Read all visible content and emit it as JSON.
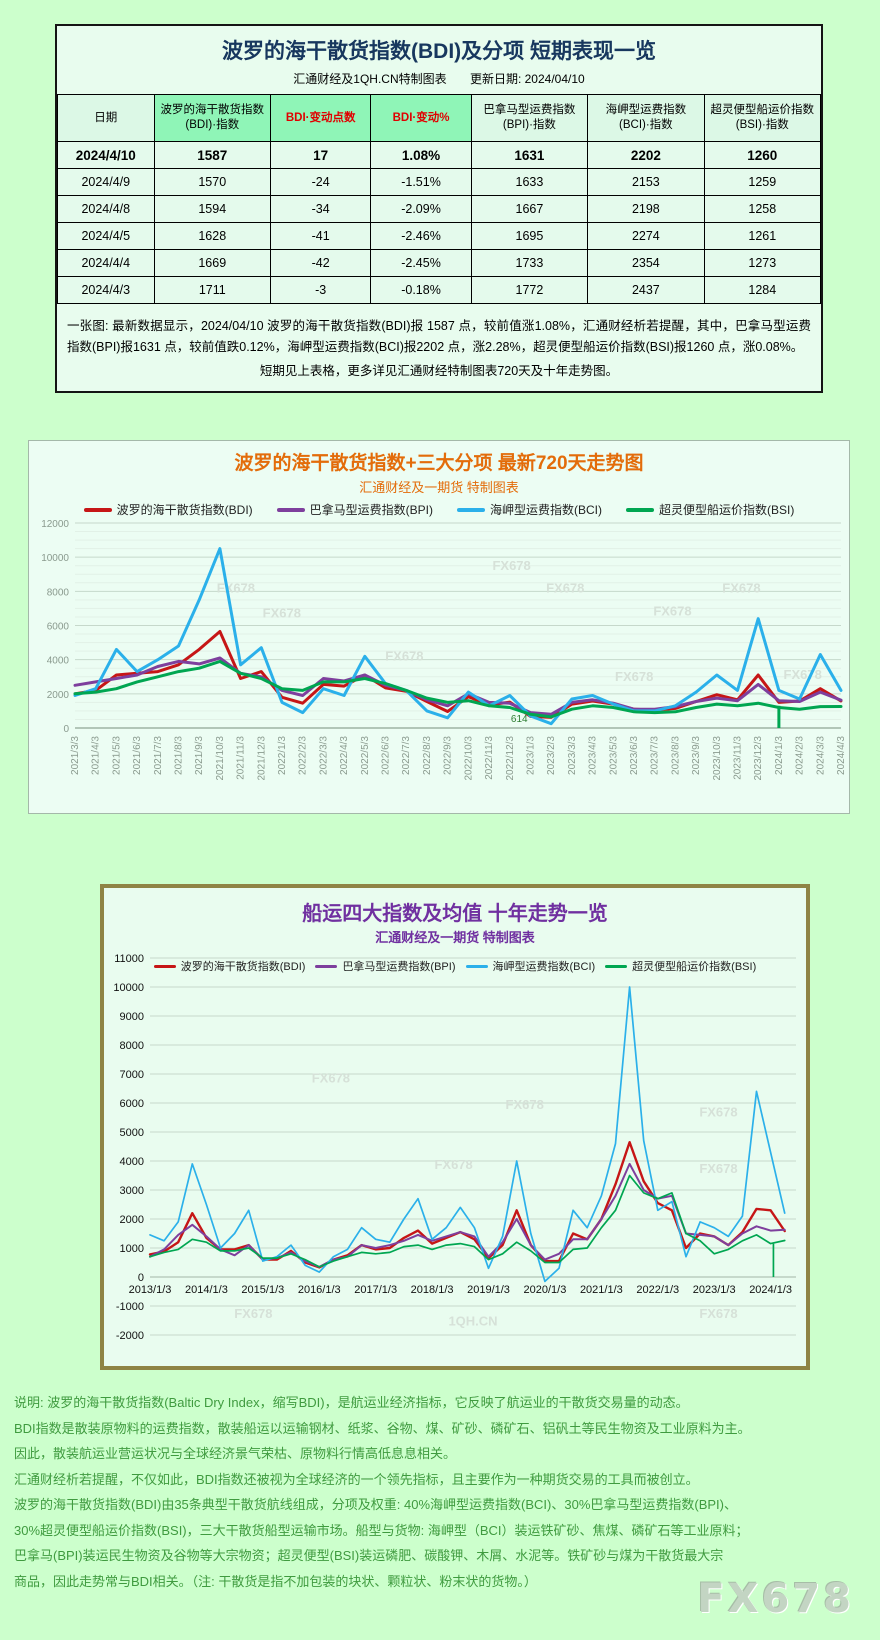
{
  "panel_table": {
    "title": "波罗的海干散货指数(BDI)及分项 短期表现一览",
    "subtitle_left": "汇通财经及1QH.CN特制图表",
    "subtitle_right": "更新日期: 2024/04/10",
    "columns": [
      "日期",
      "波罗的海干散货指数\n(BDI)·指数",
      "BDI·变动点数",
      "BDI·变动%",
      "巴拿马型运费指数\n(BPI)·指数",
      "海岬型运费指数\n(BCI)·指数",
      "超灵便型船运价指数\n(BSI)·指数"
    ],
    "highlight_columns": [
      1,
      2,
      3
    ],
    "red_columns": [
      2,
      3
    ],
    "rows": [
      [
        "2024/4/10",
        "1587",
        "17",
        "1.08%",
        "1631",
        "2202",
        "1260"
      ],
      [
        "2024/4/9",
        "1570",
        "-24",
        "-1.51%",
        "1633",
        "2153",
        "1259"
      ],
      [
        "2024/4/8",
        "1594",
        "-34",
        "-2.09%",
        "1667",
        "2198",
        "1258"
      ],
      [
        "2024/4/5",
        "1628",
        "-41",
        "-2.46%",
        "1695",
        "2274",
        "1261"
      ],
      [
        "2024/4/4",
        "1669",
        "-42",
        "-2.45%",
        "1733",
        "2354",
        "1273"
      ],
      [
        "2024/4/3",
        "1711",
        "-3",
        "-0.18%",
        "1772",
        "2437",
        "1284"
      ]
    ],
    "note_line1": "一张图: 最新数据显示，2024/04/10 波罗的海干散货指数(BDI)报 1587 点，较前值涨1.08%，汇通财经析若提醒，其中，巴拿马型运费指数(BPI)报1631 点，较前值跌0.12%，海岬型运费指数(BCI)报2202 点，涨2.28%，超灵便型船运价指数(BSI)报1260 点，涨0.08%。",
    "note_line2": "短期见上表格，更多详见汇通财经特制图表720天及十年走势图。"
  },
  "chart_data": [
    {
      "id": "chart720",
      "type": "line",
      "title": "波罗的海干散货指数+三大分项  最新720天走势图",
      "subtitle": "汇通财经及一期货 特制图表",
      "title_color": "#e36c0a",
      "ylim": [
        0,
        12000
      ],
      "ytick_step": 2000,
      "minor_step": 500,
      "grid": true,
      "legend_position": "top",
      "categories": [
        "2021/3/3",
        "2021/4/3",
        "2021/5/3",
        "2021/6/3",
        "2021/7/3",
        "2021/8/3",
        "2021/9/3",
        "2021/10/3",
        "2021/11/3",
        "2021/12/3",
        "2022/1/3",
        "2022/2/3",
        "2022/3/3",
        "2022/4/3",
        "2022/5/3",
        "2022/6/3",
        "2022/7/3",
        "2022/8/3",
        "2022/9/3",
        "2022/10/3",
        "2022/11/3",
        "2022/12/3",
        "2023/1/3",
        "2023/2/3",
        "2023/3/3",
        "2023/4/3",
        "2023/5/3",
        "2023/6/3",
        "2023/7/3",
        "2023/8/3",
        "2023/9/3",
        "2023/10/3",
        "2023/11/3",
        "2023/12/3",
        "2024/1/3",
        "2024/2/3",
        "2024/3/3",
        "2024/4/3"
      ],
      "series": [
        {
          "name": "波罗的海干散货指数(BDI)",
          "color": "#c61616",
          "values": [
            2000,
            2200,
            3100,
            3200,
            3300,
            3700,
            4600,
            5650,
            2900,
            3300,
            1800,
            1450,
            2550,
            2450,
            3100,
            2350,
            2150,
            1550,
            965,
            1835,
            1350,
            1515,
            680,
            620,
            1400,
            1580,
            1400,
            1100,
            1050,
            1150,
            1550,
            1950,
            1650,
            3100,
            1500,
            1580,
            2300,
            1587
          ]
        },
        {
          "name": "巴拿马型运费指数(BPI)",
          "color": "#7e3f9d",
          "values": [
            2500,
            2700,
            2900,
            3100,
            3600,
            3900,
            3750,
            4100,
            3200,
            3000,
            2200,
            1900,
            2900,
            2750,
            3100,
            2500,
            2200,
            1650,
            1300,
            2000,
            1500,
            1450,
            900,
            800,
            1500,
            1650,
            1450,
            1100,
            1100,
            1250,
            1550,
            1750,
            1600,
            2550,
            1600,
            1550,
            2100,
            1631
          ]
        },
        {
          "name": "海岬型运费指数(BCI)",
          "color": "#2bb0ea",
          "values": [
            1900,
            2300,
            4600,
            3300,
            4000,
            4800,
            7500,
            10500,
            3700,
            4700,
            1500,
            900,
            2300,
            1900,
            4200,
            2600,
            2200,
            1000,
            600,
            2100,
            1300,
            1900,
            700,
            250,
            1700,
            1900,
            1400,
            1000,
            1000,
            1300,
            2100,
            3100,
            2200,
            6400,
            2200,
            1700,
            4300,
            2202
          ]
        },
        {
          "name": "超灵便型船运价指数(BSI)",
          "color": "#00a651",
          "values": [
            2000,
            2100,
            2300,
            2700,
            3000,
            3300,
            3500,
            3900,
            3200,
            2900,
            2300,
            2200,
            2700,
            2700,
            2900,
            2600,
            2200,
            1750,
            1500,
            1600,
            1300,
            1200,
            800,
            650,
            1100,
            1300,
            1200,
            950,
            900,
            950,
            1200,
            1400,
            1300,
            1450,
            1200,
            1100,
            1250,
            1260
          ]
        }
      ],
      "glitch": {
        "x_index": 34,
        "from_value": 1300,
        "to_value": 0,
        "color": "#00a651"
      },
      "annotations": [
        {
          "text": "614",
          "fx": 0.58,
          "fy": 0.97,
          "color": "#2e7d32"
        }
      ],
      "watermarks": [
        {
          "t": "FX678",
          "fx": 0.21,
          "fy": 0.34
        },
        {
          "t": "FX678",
          "fx": 0.27,
          "fy": 0.46
        },
        {
          "t": "FX678",
          "fx": 0.43,
          "fy": 0.67
        },
        {
          "t": "FX678",
          "fx": 0.57,
          "fy": 0.23
        },
        {
          "t": "FX678",
          "fx": 0.64,
          "fy": 0.34
        },
        {
          "t": "FX678",
          "fx": 0.78,
          "fy": 0.45
        },
        {
          "t": "FX678",
          "fx": 0.87,
          "fy": 0.34
        },
        {
          "t": "FX678",
          "fx": 0.73,
          "fy": 0.77
        },
        {
          "t": "FX678",
          "fx": 0.95,
          "fy": 0.76
        }
      ]
    },
    {
      "id": "chart10y",
      "type": "line",
      "title": "船运四大指数及均值 十年走势一览",
      "subtitle": "汇通财经及一期货 特制图表",
      "title_color": "#7030a0",
      "ylim": [
        -2000,
        11000
      ],
      "ytick_step": 1000,
      "grid": true,
      "legend_position": "inside-top",
      "x_start": 2013.0,
      "x_step": 0.25,
      "x_domain": [
        2013.0,
        2024.45
      ],
      "xticks": [
        {
          "v": 2013,
          "label": "2013/1/3"
        },
        {
          "v": 2014,
          "label": "2014/1/3"
        },
        {
          "v": 2015,
          "label": "2015/1/3"
        },
        {
          "v": 2016,
          "label": "2016/1/3"
        },
        {
          "v": 2017,
          "label": "2017/1/3"
        },
        {
          "v": 2018,
          "label": "2018/1/3"
        },
        {
          "v": 2019,
          "label": "2019/1/3"
        },
        {
          "v": 2020,
          "label": "2020/1/3"
        },
        {
          "v": 2021,
          "label": "2021/1/3"
        },
        {
          "v": 2022,
          "label": "2022/1/3"
        },
        {
          "v": 2023,
          "label": "2023/1/3"
        },
        {
          "v": 2024,
          "label": "2024/1/3"
        }
      ],
      "series": [
        {
          "name": "波罗的海干散货指数(BDI)",
          "color": "#c61616",
          "w": 2.4,
          "values": [
            780,
            880,
            1200,
            2200,
            1350,
            950,
            950,
            1100,
            600,
            600,
            900,
            500,
            330,
            600,
            750,
            1100,
            950,
            1000,
            1350,
            1600,
            1150,
            1350,
            1550,
            1300,
            650,
            1100,
            2300,
            1100,
            550,
            550,
            1500,
            1300,
            2000,
            3200,
            4650,
            3300,
            2550,
            2300,
            1000,
            1500,
            1400,
            1100,
            1550,
            2350,
            2300,
            1587
          ]
        },
        {
          "name": "巴拿马型运费指数(BPI)",
          "color": "#7e3f9d",
          "w": 2.0,
          "values": [
            700,
            950,
            1450,
            1800,
            1400,
            950,
            750,
            1100,
            600,
            650,
            850,
            550,
            350,
            600,
            700,
            1100,
            1000,
            1100,
            1250,
            1450,
            1250,
            1400,
            1550,
            1400,
            700,
            1200,
            2000,
            1100,
            600,
            800,
            1300,
            1300,
            2000,
            2800,
            3900,
            3000,
            2700,
            2800,
            1500,
            1450,
            1400,
            1100,
            1500,
            1750,
            1600,
            1631
          ]
        },
        {
          "name": "海岬型运费指数(BCI)",
          "color": "#2bb0ea",
          "w": 1.7,
          "values": [
            1450,
            1250,
            1900,
            3900,
            2500,
            1000,
            1500,
            2300,
            550,
            700,
            1100,
            400,
            170,
            700,
            950,
            1700,
            1300,
            1200,
            2000,
            2700,
            1300,
            1700,
            2400,
            1700,
            300,
            1400,
            4000,
            1500,
            -150,
            300,
            2300,
            1700,
            2800,
            4600,
            10000,
            4700,
            2300,
            2600,
            700,
            1900,
            1700,
            1400,
            2100,
            6400,
            4300,
            2202
          ]
        },
        {
          "name": "超灵便型船运价指数(BSI)",
          "color": "#00a651",
          "w": 1.7,
          "values": [
            700,
            850,
            950,
            1300,
            1200,
            900,
            900,
            1000,
            650,
            650,
            800,
            600,
            350,
            550,
            700,
            850,
            800,
            850,
            1050,
            1100,
            950,
            1100,
            1150,
            1050,
            600,
            800,
            1200,
            900,
            500,
            500,
            950,
            1000,
            1700,
            2300,
            3500,
            2900,
            2700,
            2900,
            1500,
            1250,
            800,
            950,
            1250,
            1450,
            1150,
            1260
          ]
        }
      ],
      "glitch": {
        "x_value": 2024.05,
        "from_value": 1150,
        "to_value": 0,
        "color": "#00a651"
      },
      "watermarks": [
        {
          "t": "FX678",
          "fx": 0.28,
          "fy": 0.33
        },
        {
          "t": "FX678",
          "fx": 0.58,
          "fy": 0.4
        },
        {
          "t": "FX678",
          "fx": 0.88,
          "fy": 0.42
        },
        {
          "t": "FX678",
          "fx": 0.47,
          "fy": 0.56
        },
        {
          "t": "FX678",
          "fx": 0.88,
          "fy": 0.57
        },
        {
          "t": "FX678",
          "fx": 0.16,
          "fy": 0.955
        },
        {
          "t": "FX678",
          "fx": 0.88,
          "fy": 0.955
        },
        {
          "t": "1QH.CN",
          "fx": 0.5,
          "fy": 0.975
        }
      ]
    }
  ],
  "footer": {
    "lines": [
      "说明: 波罗的海干散货指数(Baltic Dry Index，缩写BDI)，是航运业经济指标，它反映了航运业的干散货交易量的动态。",
      "BDI指数是散装原物料的运费指数，散装船运以运输钢材、纸浆、谷物、煤、矿砂、磷矿石、铝矾土等民生物资及工业原料为主。",
      "因此，散装航运业营运状况与全球经济景气荣枯、原物料行情高低息息相关。",
      "汇通财经析若提醒，不仅如此，BDI指数还被视为全球经济的一个领先指标，且主要作为一种期货交易的工具而被创立。",
      "波罗的海干散货指数(BDI)由35条典型干散货航线组成，分项及权重: 40%海岬型运费指数(BCI)、30%巴拿马型运费指数(BPI)、",
      "30%超灵便型船运价指数(BSI)，三大干散货船型运输市场。船型与货物: 海岬型（BCI）装运铁矿砂、焦煤、磷矿石等工业原料；",
      "巴拿马(BPI)装运民生物资及谷物等大宗物资；超灵便型(BSI)装运磷肥、碳酸钾、木屑、水泥等。铁矿砂与煤为干散货最大宗",
      "商品，因此走势常与BDI相关。（注: 干散货是指不加包装的块状、颗粒状、粉末状的货物。）"
    ],
    "big_watermark": "FX678"
  }
}
